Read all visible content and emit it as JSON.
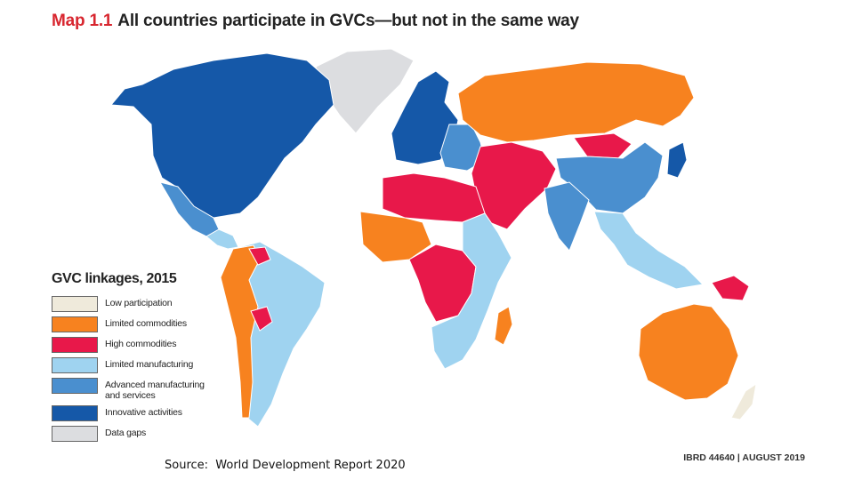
{
  "title": {
    "label": "Map 1.1",
    "text": "All countries participate in GVCs—but not in the same way"
  },
  "legend": {
    "title": "GVC linkages, 2015",
    "items": [
      {
        "label": "Low participation",
        "color": "#efeadb"
      },
      {
        "label": "Limited commodities",
        "color": "#f7821f"
      },
      {
        "label": "High commodities",
        "color": "#e8184a"
      },
      {
        "label": "Limited manufacturing",
        "color": "#9fd3f0"
      },
      {
        "label": "Advanced manufacturing and services",
        "color": "#4a8fcf"
      },
      {
        "label": "Innovative activities",
        "color": "#1558a8"
      },
      {
        "label": "Data gaps",
        "color": "#dcdde0"
      }
    ]
  },
  "regions": {
    "north_america": "Innovative activities",
    "greenland": "Data gaps",
    "mexico": "Advanced manufacturing and services",
    "central_america": "Limited manufacturing",
    "south_america": "Limited manufacturing",
    "andean_countries": "Limited commodities",
    "bolivia_venezuela": "High commodities",
    "europe_west": "Innovative activities",
    "eastern_europe": "Advanced manufacturing and services",
    "russia": "Limited commodities",
    "middle_east_central_asia": "High commodities",
    "north_africa": "High commodities",
    "west_africa": "Limited commodities",
    "central_africa": "High commodities",
    "east_southern_africa": "Limited manufacturing",
    "madagascar": "Limited commodities",
    "china": "Advanced manufacturing and services",
    "india": "Advanced manufacturing and services",
    "southeast_asia": "Limited manufacturing",
    "japan": "Innovative activities",
    "mongolia": "High commodities",
    "australia": "Limited commodities",
    "papua_new_guinea": "High commodities",
    "new_zealand": "Low participation"
  },
  "source": "Source:  World Development Report 2020",
  "ibrd": "IBRD 44640 | AUGUST 2019"
}
